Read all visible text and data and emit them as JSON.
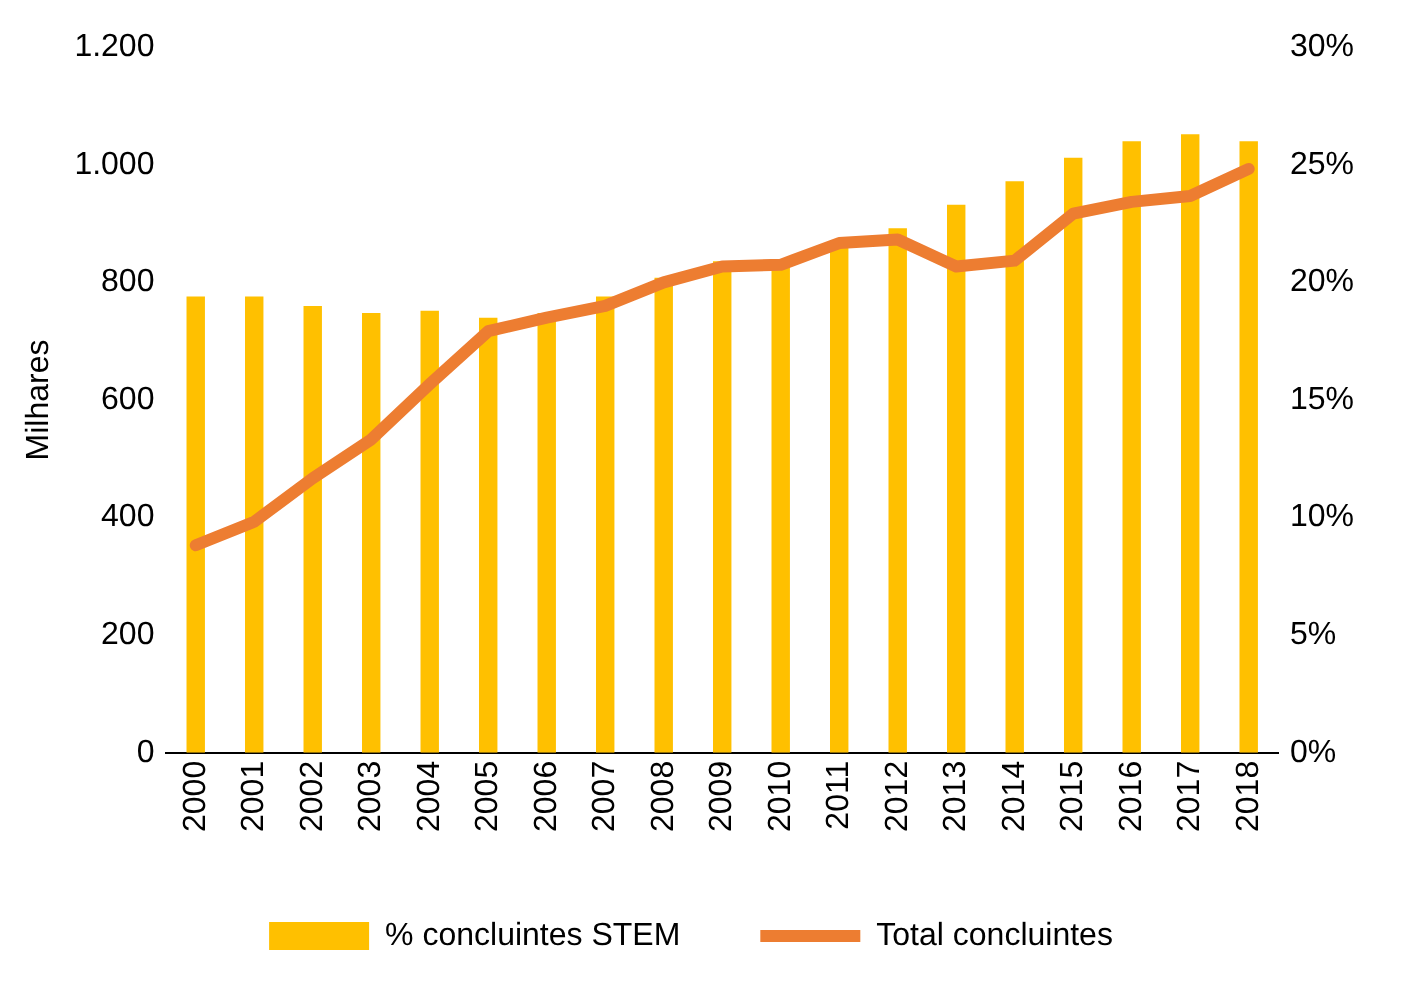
{
  "chart_data": {
    "type": "bar",
    "ylabel": "Milhares",
    "categories": [
      "2000",
      "2001",
      "2002",
      "2003",
      "2004",
      "2005",
      "2006",
      "2007",
      "2008",
      "2009",
      "2010",
      "2011",
      "2012",
      "2013",
      "2014",
      "2015",
      "2016",
      "2017",
      "2018"
    ],
    "series": [
      {
        "name": "% concluintes STEM",
        "axis": "y2",
        "color": "#ffc000",
        "values": [
          19.4,
          19.4,
          19.0,
          18.7,
          18.8,
          18.5,
          18.7,
          19.4,
          20.2,
          20.9,
          20.9,
          21.7,
          22.3,
          23.3,
          24.3,
          25.3,
          26.0,
          26.3,
          26.0
        ]
      },
      {
        "name": "Total concluintes",
        "type": "line",
        "axis": "y",
        "color": "#ed7d31",
        "values": [
          353,
          393,
          467,
          533,
          627,
          717,
          740,
          760,
          800,
          827,
          830,
          867,
          873,
          827,
          837,
          917,
          937,
          947,
          993
        ]
      }
    ],
    "ylim": [
      0,
      1200
    ],
    "yticks": [
      0,
      200,
      400,
      600,
      800,
      {
        "value": 1000,
        "label": "1.000"
      },
      {
        "value": 1200,
        "label": "1.200"
      }
    ],
    "y2lim": [
      0,
      30
    ],
    "y2ticks": [
      {
        "value": 0,
        "label": "0%"
      },
      {
        "value": 5,
        "label": "5%"
      },
      {
        "value": 10,
        "label": "10%"
      },
      {
        "value": 15,
        "label": "15%"
      },
      {
        "value": 20,
        "label": "20%"
      },
      {
        "value": 25,
        "label": "25%"
      },
      {
        "value": 30,
        "label": "30%"
      }
    ],
    "grid": false,
    "legend": "bottom",
    "marker": "none",
    "line_style": "solid"
  }
}
